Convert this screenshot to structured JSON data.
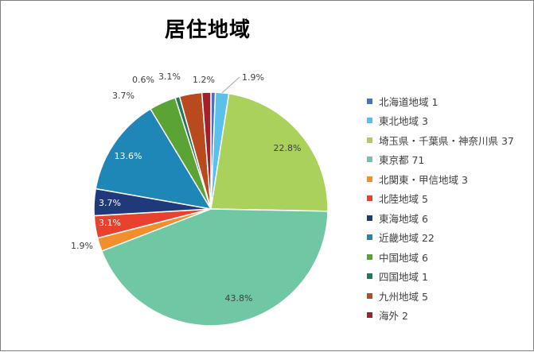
{
  "chart_data": {
    "type": "pie",
    "title": "居住地域",
    "legend_position": "right",
    "slices": [
      {
        "name": "北海道地域",
        "value": 1,
        "percent_label": "",
        "color": "#4472c4"
      },
      {
        "name": "東北地域",
        "value": 3,
        "percent_label": "1.9%",
        "color": "#5bc0eb"
      },
      {
        "name": "埼玉県・千葉県・神奈川県",
        "value": 37,
        "percent_label": "22.8%",
        "color": "#a9d15c"
      },
      {
        "name": "東京都",
        "value": 71,
        "percent_label": "43.8%",
        "color": "#6fc7a3"
      },
      {
        "name": "北関東・甲信地域",
        "value": 3,
        "percent_label": "1.9%",
        "color": "#f28e2b"
      },
      {
        "name": "北陸地域",
        "value": 5,
        "percent_label": "3.1%",
        "color": "#e8412e"
      },
      {
        "name": "東海地域",
        "value": 6,
        "percent_label": "3.7%",
        "color": "#1f3a7a"
      },
      {
        "name": "近畿地域",
        "value": 22,
        "percent_label": "13.6%",
        "color": "#1f86b8"
      },
      {
        "name": "中国地域",
        "value": 6,
        "percent_label": "3.7%",
        "color": "#5ca336"
      },
      {
        "name": "四国地域",
        "value": 1,
        "percent_label": "0.6%",
        "color": "#1f7a5c"
      },
      {
        "name": "九州地域",
        "value": 5,
        "percent_label": "3.1%",
        "color": "#b84a1e"
      },
      {
        "name": "海外",
        "value": 2,
        "percent_label": "1.2%",
        "color": "#a3202a"
      }
    ]
  }
}
